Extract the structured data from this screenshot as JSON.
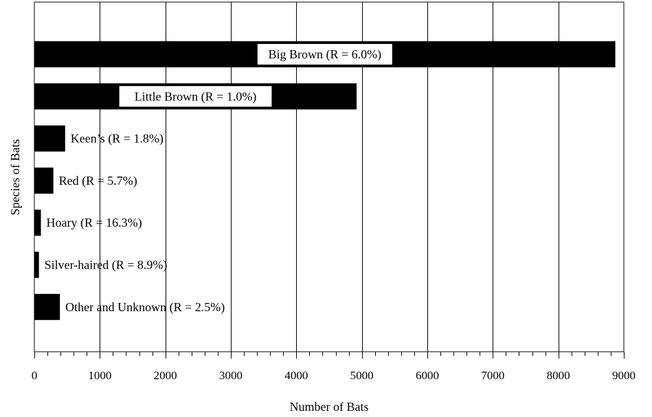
{
  "chart_data": {
    "type": "bar",
    "orientation": "horizontal",
    "title": "",
    "xlabel": "Number of Bats",
    "ylabel": "Species of Bats",
    "xlim": [
      0,
      9000
    ],
    "x_ticks": [
      "0",
      "1000",
      "2000",
      "3000",
      "4000",
      "5000",
      "6000",
      "7000",
      "8000",
      "9000"
    ],
    "grid": "vertical",
    "legend": "none",
    "bar_color": "#000000",
    "categories": [
      "Big Brown (R = 6.0%)",
      "Little Brown (R = 1.0%)",
      "Keen’s (R = 1.8%)",
      "Red (R = 5.7%)",
      "Hoary (R = 16.3%)",
      "Silver-haired (R = 8.9%)",
      "Other and Unknown (R = 2.5%)"
    ],
    "values": [
      8870,
      4920,
      470,
      290,
      100,
      70,
      390
    ]
  }
}
